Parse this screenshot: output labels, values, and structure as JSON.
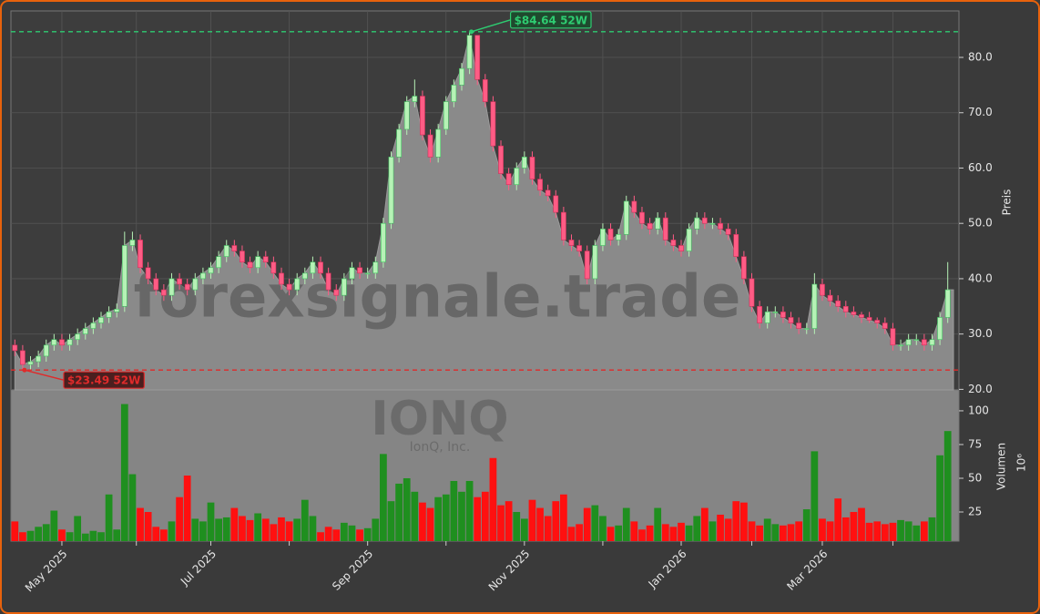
{
  "chart_data": {
    "type": "candlestick",
    "title": "IONQ",
    "subtitle": "IonQ, Inc.",
    "watermark": "forexsignale.trade",
    "ylabel": "Preis",
    "volume_label": "Volumen",
    "volume_scale": "10⁶",
    "categories": [
      null,
      null,
      null,
      null,
      null,
      null,
      "May 2025",
      null,
      null,
      null,
      null,
      null,
      null,
      null,
      null,
      null,
      null,
      null,
      null,
      null,
      null,
      null,
      null,
      null,
      null,
      "Jul 2025",
      null,
      null,
      null,
      null,
      null,
      null,
      null,
      null,
      null,
      null,
      null,
      null,
      null,
      null,
      null,
      null,
      null,
      null,
      null,
      "Sep 2025",
      null,
      null,
      null,
      null,
      null,
      null,
      null,
      null,
      null,
      null,
      null,
      null,
      null,
      null,
      null,
      null,
      null,
      null,
      null,
      "Nov 2025",
      null,
      null,
      null,
      null,
      null,
      null,
      null,
      null,
      null,
      null,
      null,
      null,
      null,
      null,
      null,
      null,
      null,
      null,
      null,
      "Jan 2026",
      null,
      null,
      null,
      null,
      null,
      null,
      null,
      null,
      null,
      null,
      null,
      null,
      null,
      null,
      null,
      null,
      null,
      "Mar 2026",
      null,
      null,
      null,
      null,
      null,
      null,
      null,
      null,
      null,
      null,
      null,
      null,
      null,
      null,
      null,
      null
    ],
    "open": [
      28,
      27,
      24.5,
      25,
      26,
      28,
      29,
      28,
      29,
      30,
      31,
      32,
      33,
      34,
      35,
      46,
      47,
      42,
      40,
      38,
      37,
      40,
      39,
      38,
      40,
      41,
      42,
      44,
      46,
      45,
      43,
      42,
      44,
      43,
      41,
      39,
      38,
      40,
      41,
      43,
      41,
      38,
      37,
      40,
      42,
      41,
      41,
      43,
      50,
      62,
      67,
      72,
      73,
      66,
      62,
      67,
      72,
      75,
      78,
      84,
      76,
      72,
      64,
      59,
      57,
      60,
      62,
      58,
      56,
      55,
      52,
      47,
      46,
      45,
      40,
      46,
      49,
      47,
      48,
      54,
      52,
      50,
      49,
      51,
      47,
      46,
      45,
      49,
      51,
      50,
      50,
      49,
      48,
      44,
      40,
      35,
      32,
      34,
      34,
      33,
      32,
      31,
      31,
      39,
      37,
      36,
      35,
      34,
      33.5,
      33,
      32.5,
      32,
      31,
      28,
      28,
      29,
      29,
      28,
      29,
      33
    ],
    "high": [
      29,
      28,
      26,
      27,
      29,
      30,
      30,
      30,
      31,
      32,
      33,
      34,
      35,
      35.5,
      48.5,
      48.5,
      48,
      43,
      41,
      39,
      41,
      41,
      40,
      41,
      42,
      43,
      45,
      47,
      47,
      46,
      44,
      45,
      45,
      44,
      42,
      40,
      41,
      42,
      44,
      44,
      42,
      39,
      41,
      43,
      43,
      42,
      44,
      51,
      63,
      68,
      73,
      76,
      74,
      67,
      68,
      73,
      76,
      79,
      84.64,
      84,
      77,
      73,
      65,
      60,
      61,
      63,
      63,
      59,
      57,
      56,
      53,
      48,
      47,
      46,
      47,
      50,
      50,
      49,
      55,
      55,
      53,
      51,
      52,
      52,
      48,
      47,
      50,
      52,
      52,
      51,
      51,
      50,
      49,
      45,
      41,
      36,
      35,
      35,
      35,
      34,
      33,
      32,
      41,
      40,
      38,
      37,
      36,
      35,
      34,
      34,
      33,
      33,
      32,
      29,
      30,
      30,
      30,
      30,
      34,
      43
    ],
    "low": [
      26,
      23.49,
      23.5,
      24,
      25,
      27,
      27,
      27,
      28,
      29,
      30,
      31,
      32,
      33,
      34,
      45,
      41,
      39,
      37,
      36,
      36,
      38,
      37,
      37,
      39,
      40,
      41,
      43,
      44,
      42,
      41,
      41,
      42,
      40,
      38,
      37,
      37,
      39,
      40,
      40,
      37,
      36,
      36,
      39,
      40,
      40,
      40,
      42,
      49,
      61,
      66,
      71,
      65,
      61,
      61,
      66,
      71,
      74,
      77,
      75,
      71,
      63,
      58,
      56,
      56,
      59,
      57,
      55,
      54,
      51,
      46,
      45,
      44,
      39,
      39,
      45,
      46,
      46,
      47,
      51,
      49,
      48,
      48,
      46,
      45,
      44,
      44,
      48,
      49,
      49,
      48,
      47,
      43,
      39,
      34,
      31,
      31,
      33,
      32,
      31,
      30,
      30,
      30,
      36,
      35,
      34,
      33,
      33,
      32,
      32,
      31,
      30,
      27,
      27,
      27,
      28,
      27,
      27,
      28,
      32
    ],
    "close": [
      27,
      24.5,
      25,
      26,
      28,
      29,
      28,
      29,
      30,
      31,
      32,
      33,
      34,
      34.5,
      46,
      47,
      42,
      40,
      38,
      37,
      40,
      39,
      38,
      40,
      41,
      42,
      44,
      46,
      45,
      43,
      42,
      44,
      43,
      41,
      39,
      38,
      40,
      41,
      43,
      41,
      38,
      37,
      40,
      42,
      41,
      41,
      43,
      50,
      62,
      67,
      72,
      73,
      66,
      62,
      67,
      72,
      75,
      78,
      84,
      76,
      72,
      64,
      59,
      57,
      60,
      62,
      58,
      56,
      55,
      52,
      47,
      46,
      45,
      40,
      46,
      49,
      47,
      48,
      54,
      52,
      50,
      49,
      51,
      47,
      46,
      45,
      49,
      51,
      50,
      50,
      49,
      48,
      44,
      40,
      35,
      32,
      34,
      34,
      33,
      32,
      31,
      31,
      39,
      37,
      36,
      35,
      34,
      33.5,
      33,
      32.5,
      32,
      31,
      28,
      28,
      29,
      29,
      28,
      29,
      33,
      38
    ],
    "volume": [
      18,
      10,
      11,
      14,
      16,
      26,
      12,
      10,
      22,
      9,
      11,
      10,
      38,
      12,
      105,
      53,
      28,
      25,
      14,
      12,
      18,
      36,
      52,
      20,
      18,
      32,
      20,
      21,
      28,
      22,
      19,
      24,
      20,
      16,
      21,
      18,
      20,
      34,
      22,
      10,
      14,
      12,
      17,
      15,
      12,
      13,
      20,
      68,
      33,
      46,
      50,
      40,
      32,
      28,
      36,
      38,
      48,
      40,
      48,
      36,
      40,
      65,
      30,
      33,
      25,
      20,
      34,
      28,
      22,
      33,
      38,
      14,
      16,
      28,
      30,
      22,
      14,
      15,
      28,
      18,
      12,
      15,
      28,
      16,
      14,
      17,
      15,
      22,
      28,
      18,
      23,
      20,
      33,
      32,
      18,
      15,
      20,
      16,
      15,
      16,
      18,
      27,
      70,
      20,
      18,
      35,
      21,
      25,
      28,
      17,
      18,
      16,
      17,
      19,
      18,
      15,
      18,
      21,
      67,
      85
    ],
    "ylim": [
      19.9,
      88.4
    ],
    "yticks": [
      {
        "value": 20,
        "label": "20.0"
      },
      {
        "value": 30,
        "label": "30.0"
      },
      {
        "value": 40,
        "label": "40.0"
      },
      {
        "value": 50,
        "label": "50.0"
      },
      {
        "value": 60,
        "label": "60.0"
      },
      {
        "value": 70,
        "label": "70.0"
      },
      {
        "value": 80,
        "label": "80.0"
      }
    ],
    "volume_ylim": [
      3.4,
      115.5
    ],
    "volume_yticks": [
      25,
      50,
      75,
      100
    ],
    "grid": true,
    "up_color": "#b6f2b6",
    "down_color": "#ff5c85",
    "volume_up_color": "#1f8f1f",
    "volume_down_color": "#ff1010",
    "area_color": "#8a8a8a",
    "annotations": [
      {
        "text": "$84.64 52W",
        "value": 84.64,
        "color": "#2ecc71"
      },
      {
        "text": "$23.49 52W",
        "value": 23.49,
        "color": "#e02a2a"
      }
    ]
  }
}
